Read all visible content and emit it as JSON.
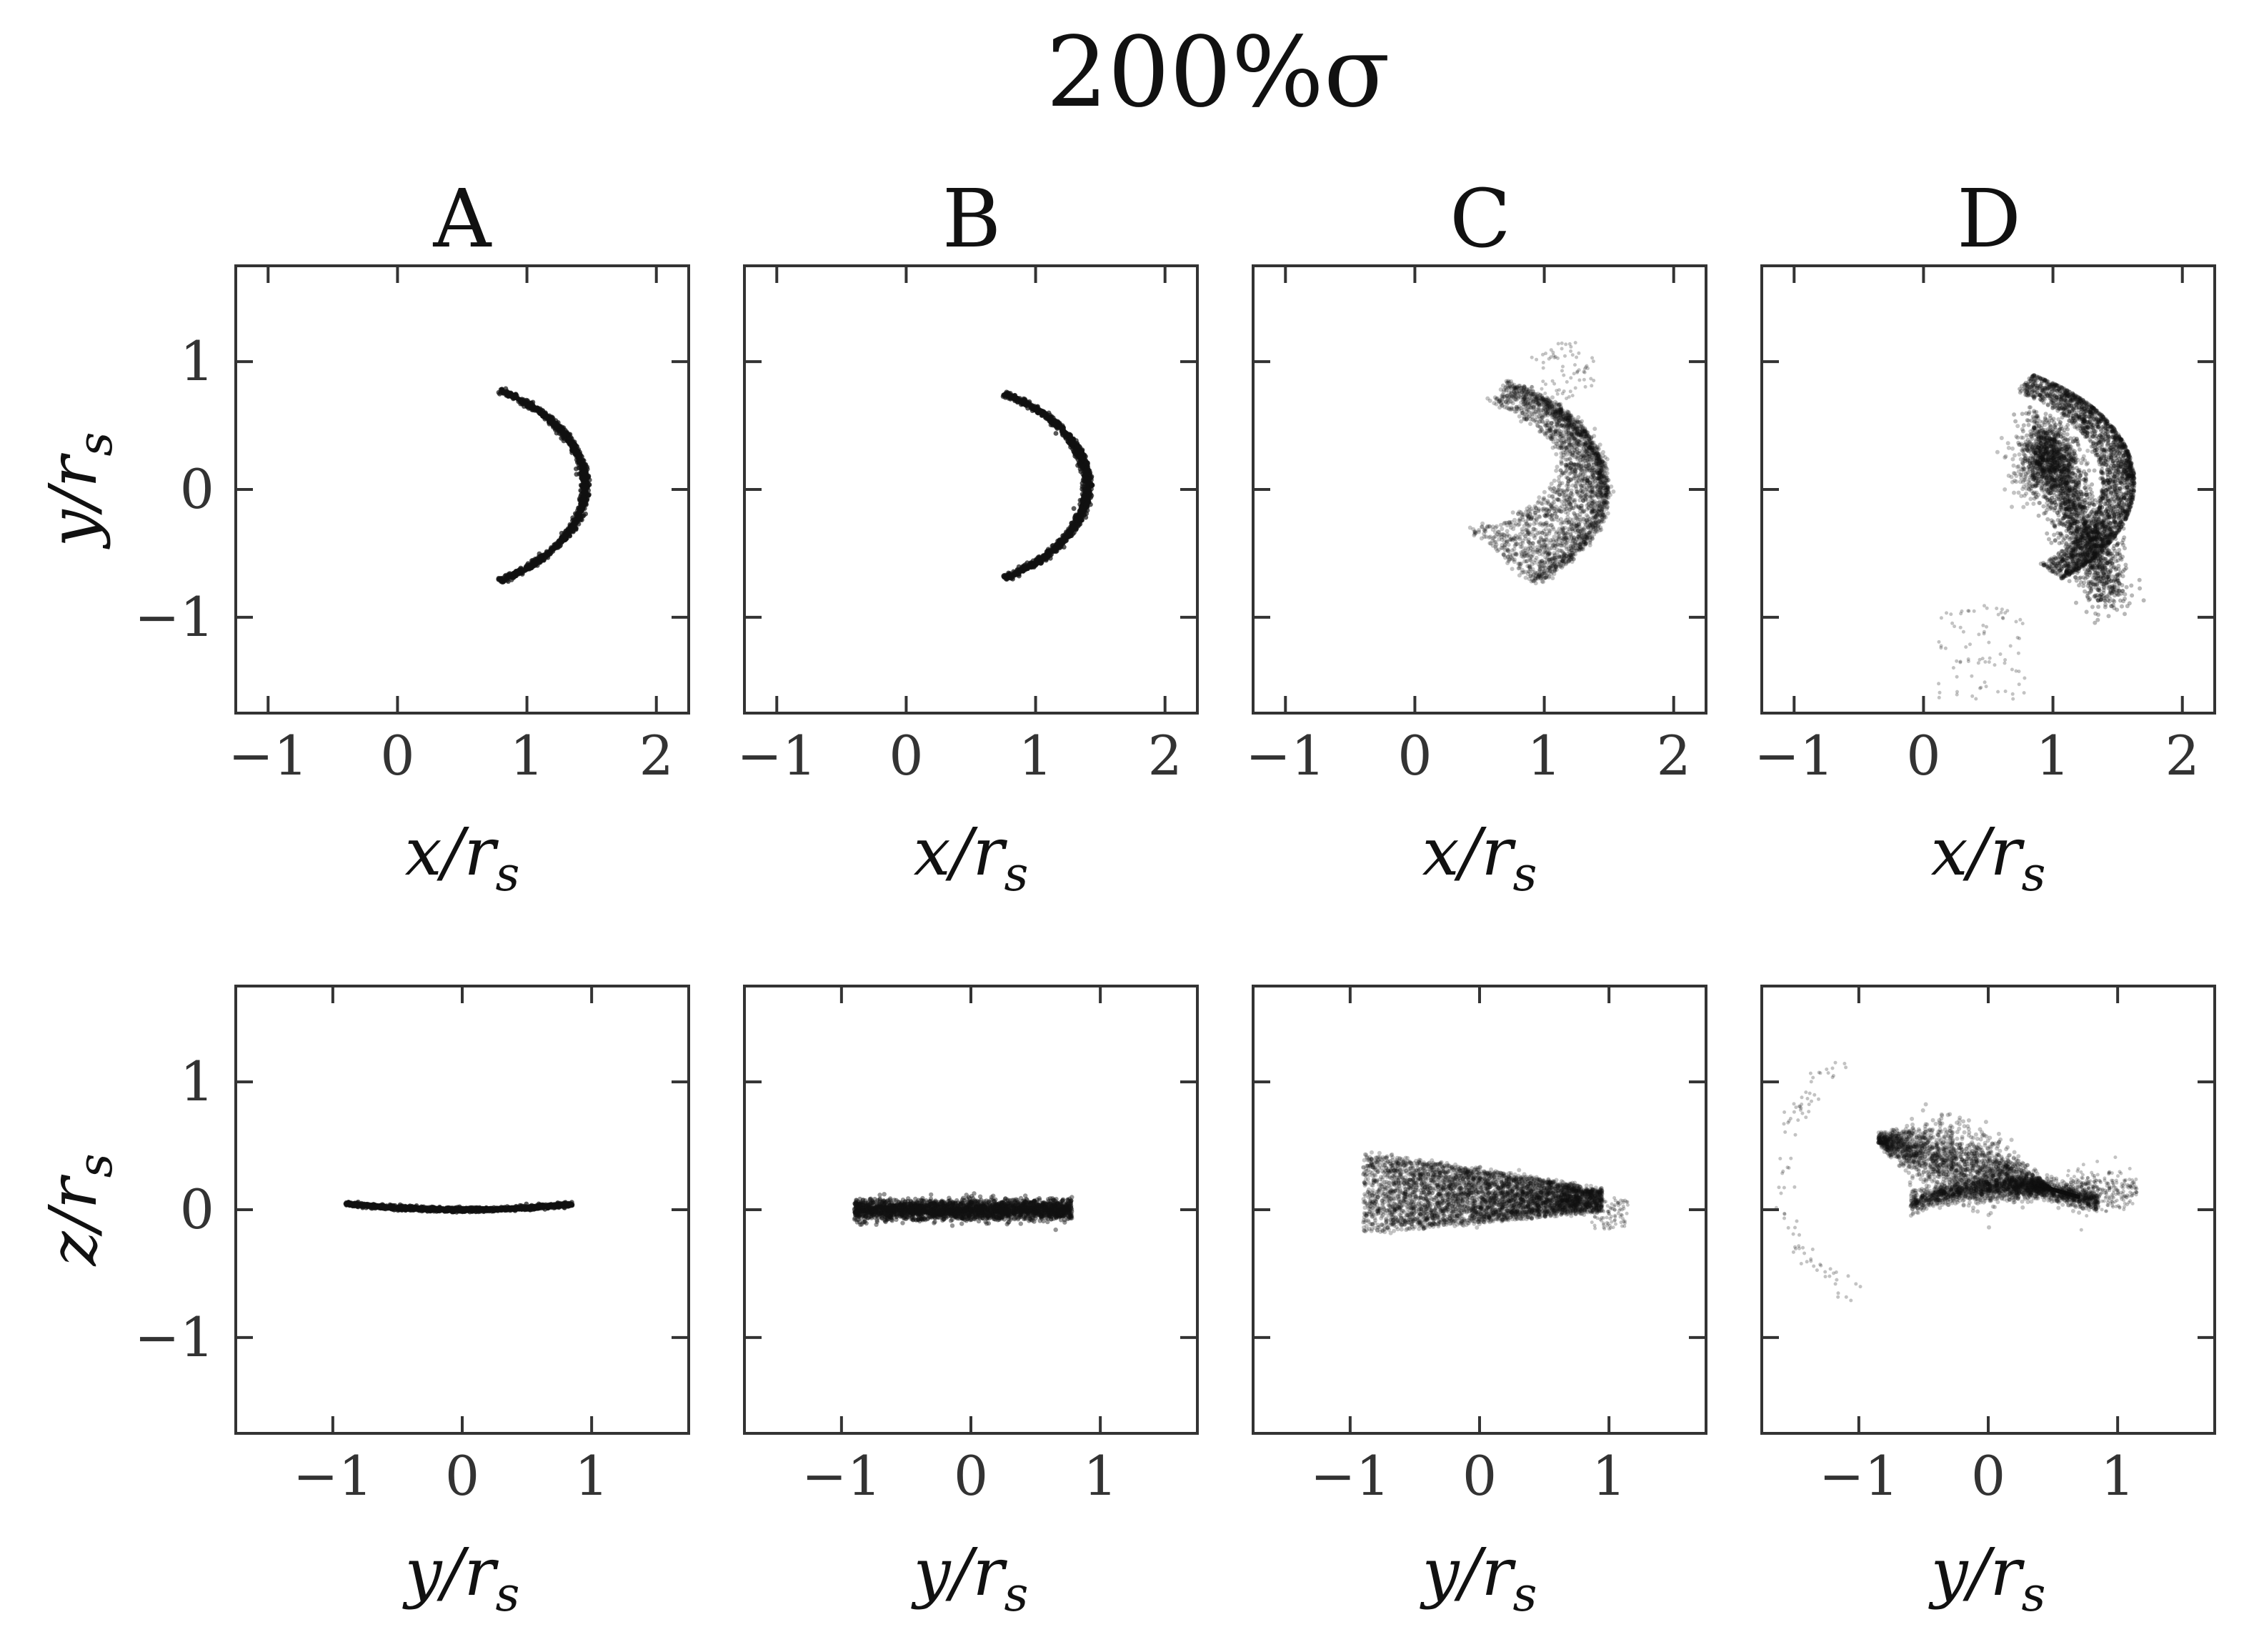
{
  "figure_title": "200%σ",
  "column_titles": [
    "A",
    "B",
    "C",
    "D"
  ],
  "chart_data": [
    {
      "type": "scatter",
      "panel": "A",
      "row": "top",
      "xlabel": "x/r_s",
      "ylabel": "y/r_s",
      "xlim": [
        -1.25,
        2.25
      ],
      "ylim": [
        -1.75,
        1.75
      ],
      "xticks": [
        -1,
        0,
        1,
        2
      ],
      "yticks": [
        -1,
        0,
        1
      ],
      "tick_labels_x": [
        "−1",
        "0",
        "1",
        "2"
      ],
      "tick_labels_y": [
        "−1",
        "0",
        "1"
      ],
      "shape": "arc",
      "center": [
        0.0,
        0.0
      ],
      "radius": 1.5,
      "theta_deg": [
        -56,
        56
      ],
      "width": 0.03,
      "density": "tight"
    },
    {
      "type": "scatter",
      "panel": "B",
      "row": "top",
      "xlabel": "x/r_s",
      "xlim": [
        -1.25,
        2.25
      ],
      "ylim": [
        -1.75,
        1.75
      ],
      "xticks": [
        -1,
        0,
        1,
        2
      ],
      "yticks": [
        -1,
        0,
        1
      ],
      "tick_labels_x": [
        "−1",
        "0",
        "1",
        "2"
      ],
      "shape": "arc",
      "center": [
        0.0,
        0.0
      ],
      "radius": 1.45,
      "theta_deg": [
        -56,
        56
      ],
      "width": 0.035,
      "density": "tight"
    },
    {
      "type": "scatter",
      "panel": "C",
      "row": "top",
      "xlabel": "x/r_s",
      "xlim": [
        -1.25,
        2.25
      ],
      "ylim": [
        -1.75,
        1.75
      ],
      "xticks": [
        -1,
        0,
        1,
        2
      ],
      "yticks": [
        -1,
        0,
        1
      ],
      "tick_labels_x": [
        "−1",
        "0",
        "1",
        "2"
      ],
      "shape": "crescent",
      "arc": {
        "center": [
          0.0,
          0.0
        ],
        "radius": 1.52,
        "theta_deg": [
          -52,
          60
        ]
      },
      "spread_inward": 0.8,
      "range_x": [
        0.5,
        1.55
      ],
      "range_y": [
        -0.9,
        1.1
      ]
    },
    {
      "type": "scatter",
      "panel": "D",
      "row": "top",
      "xlabel": "x/r_s",
      "xlim": [
        -1.25,
        2.25
      ],
      "ylim": [
        -1.75,
        1.75
      ],
      "xticks": [
        -1,
        0,
        1,
        2
      ],
      "yticks": [
        -1,
        0,
        1
      ],
      "tick_labels_x": [
        "−1",
        "0",
        "1",
        "2"
      ],
      "shape": "multi-lobe",
      "range_x": [
        0.1,
        1.6
      ],
      "range_y": [
        -1.65,
        1.1
      ],
      "sparse_tail": {
        "x": [
          0.1,
          0.8
        ],
        "y": [
          -1.65,
          -0.9
        ]
      }
    },
    {
      "type": "scatter",
      "panel": "A",
      "row": "bottom",
      "xlabel": "y/r_s",
      "ylabel": "z/r_s",
      "xlim": [
        -1.75,
        1.75
      ],
      "ylim": [
        -1.75,
        1.75
      ],
      "xticks": [
        -1,
        0,
        1
      ],
      "yticks": [
        -1,
        0,
        1
      ],
      "tick_labels_x": [
        "−1",
        "0",
        "1"
      ],
      "tick_labels_y": [
        "−1",
        "0",
        "1"
      ],
      "shape": "thin-band",
      "x_range": [
        -0.9,
        0.85
      ],
      "z_at_ends": [
        0.05,
        0.08
      ],
      "z_at_center": 0.0
    },
    {
      "type": "scatter",
      "panel": "B",
      "row": "bottom",
      "xlabel": "y/r_s",
      "xlim": [
        -1.75,
        1.75
      ],
      "ylim": [
        -1.75,
        1.75
      ],
      "xticks": [
        -1,
        0,
        1
      ],
      "yticks": [
        -1,
        0,
        1
      ],
      "tick_labels_x": [
        "−1",
        "0",
        "1"
      ],
      "shape": "flat-ellipse",
      "x_range": [
        -0.9,
        0.78
      ],
      "z_halfwidth": 0.1
    },
    {
      "type": "scatter",
      "panel": "C",
      "row": "bottom",
      "xlabel": "y/r_s",
      "xlim": [
        -1.75,
        1.75
      ],
      "ylim": [
        -1.75,
        1.75
      ],
      "xticks": [
        -1,
        0,
        1
      ],
      "yticks": [
        -1,
        0,
        1
      ],
      "tick_labels_x": [
        "−1",
        "0",
        "1"
      ],
      "shape": "wedge",
      "x_range": [
        -0.9,
        1.1
      ],
      "z_range": [
        -0.2,
        0.5
      ]
    },
    {
      "type": "scatter",
      "panel": "D",
      "row": "bottom",
      "xlabel": "y/r_s",
      "xlim": [
        -1.75,
        1.75
      ],
      "ylim": [
        -1.75,
        1.75
      ],
      "xticks": [
        -1,
        0,
        1
      ],
      "yticks": [
        -1,
        0,
        1
      ],
      "tick_labels_x": [
        "−1",
        "0",
        "1"
      ],
      "shape": "double-lobe",
      "x_range": [
        -1.6,
        1.1
      ],
      "z_range": [
        -0.65,
        1.1
      ]
    }
  ]
}
